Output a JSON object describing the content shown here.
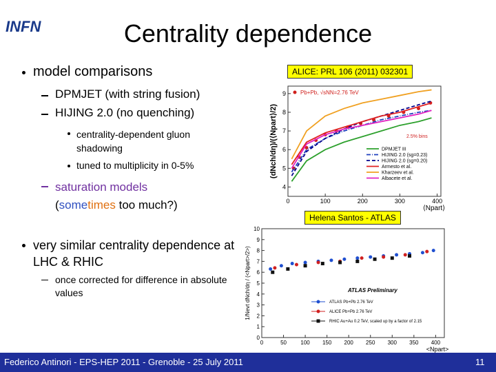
{
  "header": {
    "logo": "INFN",
    "title": "Centrality dependence"
  },
  "bullets": [
    {
      "text": "model comparisons"
    },
    {
      "text": "DPMJET (with string fusion)"
    },
    {
      "text": "HIJING 2.0 (no quenching)"
    },
    {
      "text": "centrality-dependent gluon shadowing"
    },
    {
      "text": "tuned to multiplicity in 0-5%"
    },
    {
      "parts": [
        "saturation models",
        "(",
        "some",
        "times",
        " too much?)"
      ]
    },
    {
      "text": "very similar centrality dependence at LHC & RHIC"
    },
    {
      "text": "once corrected for difference in absolute values"
    }
  ],
  "labels": {
    "alice_ref": "ALICE: PRL 106 (2011) 032301",
    "atlas_credit": "Helena Santos - ATLAS"
  },
  "figures": [
    {
      "type": "line",
      "ylabel": "(dNch/dη)/(⟨Npart⟩/2)",
      "xlabel": "⟨Npart⟩",
      "annotation": "2.5% bins",
      "xlim": [
        0,
        410
      ],
      "xticks": [
        0,
        100,
        200,
        300,
        400
      ],
      "ylim": [
        3.5,
        9.4
      ],
      "yticks": [
        4,
        5,
        6,
        7,
        8,
        9
      ],
      "series": [
        {
          "name": "Pb+Pb, √sNN=2.76 TeV",
          "color": "#d0201c",
          "style": "points",
          "x": [
            15,
            30,
            50,
            75,
            100,
            130,
            160,
            195,
            230,
            270,
            310,
            350,
            382
          ],
          "values": [
            5.0,
            5.6,
            6.1,
            6.5,
            6.8,
            7.0,
            7.2,
            7.4,
            7.6,
            7.8,
            8.0,
            8.2,
            8.5
          ]
        },
        {
          "name": "DPMJET III",
          "color": "#2ca02c",
          "style": "solid",
          "x": [
            10,
            50,
            100,
            150,
            200,
            250,
            300,
            350,
            385
          ],
          "values": [
            4.3,
            5.4,
            6.0,
            6.4,
            6.7,
            7.0,
            7.3,
            7.5,
            7.7
          ]
        },
        {
          "name": "HIJING 2.0 (sg=0.23)",
          "color": "#1f3fbf",
          "style": "dashdot",
          "x": [
            10,
            50,
            100,
            150,
            200,
            250,
            300,
            350,
            385
          ],
          "values": [
            4.8,
            6.0,
            6.6,
            7.0,
            7.3,
            7.6,
            7.8,
            8.0,
            8.1
          ]
        },
        {
          "name": "HIJING 2.0 (sg=0.20)",
          "color": "#00008b",
          "style": "dashed",
          "x": [
            10,
            50,
            100,
            150,
            200,
            250,
            300,
            350,
            385
          ],
          "values": [
            4.6,
            5.9,
            6.6,
            7.1,
            7.5,
            7.8,
            8.1,
            8.4,
            8.6
          ]
        },
        {
          "name": "Armesto et al.",
          "color": "#e02020",
          "style": "solid",
          "x": [
            10,
            50,
            100,
            150,
            200,
            250,
            300,
            350,
            385
          ],
          "values": [
            5.2,
            6.4,
            6.9,
            7.2,
            7.5,
            7.8,
            8.0,
            8.3,
            8.5
          ]
        },
        {
          "name": "Kharzeev et al.",
          "color": "#f0a020",
          "style": "solid",
          "x": [
            10,
            50,
            100,
            150,
            200,
            250,
            300,
            350,
            385
          ],
          "values": [
            5.5,
            7.0,
            7.8,
            8.2,
            8.5,
            8.7,
            8.9,
            9.1,
            9.2
          ]
        },
        {
          "name": "Albacete et al.",
          "color": "#e020c0",
          "style": "solid",
          "x": [
            10,
            50,
            100,
            150,
            200,
            250,
            300,
            350,
            385
          ],
          "values": [
            5.0,
            6.3,
            6.8,
            7.1,
            7.3,
            7.5,
            7.7,
            7.9,
            8.1
          ]
        }
      ]
    },
    {
      "type": "scatter",
      "ylabel": "1/Nevt dNch/dη / (<Npart>/2>)",
      "xlabel": "<Npart>",
      "annotation": "ATLAS Preliminary",
      "xlim": [
        0,
        420
      ],
      "xticks": [
        0,
        50,
        100,
        150,
        200,
        250,
        300,
        350,
        400
      ],
      "ylim": [
        0,
        10
      ],
      "yticks": [
        0,
        1,
        2,
        3,
        4,
        5,
        6,
        7,
        8,
        9,
        10
      ],
      "series": [
        {
          "name": "ATLAS Pb+Pb 2.76 TeV",
          "color": "#1f4fd0",
          "style": "points",
          "x": [
            20,
            45,
            70,
            100,
            130,
            160,
            190,
            220,
            250,
            280,
            310,
            340,
            370,
            395
          ],
          "values": [
            6.3,
            6.6,
            6.8,
            6.9,
            7.0,
            7.1,
            7.2,
            7.3,
            7.4,
            7.5,
            7.6,
            7.7,
            7.8,
            8.0
          ]
        },
        {
          "name": "ALICE Pb+Pb 2.76 TeV",
          "color": "#d02020",
          "style": "points",
          "x": [
            30,
            80,
            130,
            180,
            230,
            280,
            330,
            380
          ],
          "values": [
            6.4,
            6.7,
            6.9,
            7.0,
            7.3,
            7.4,
            7.6,
            7.9
          ]
        },
        {
          "name": "RHIC Au+Au 0.2 TeV, scaled up by a factor of 2.15",
          "color": "#111111",
          "style": "squares",
          "x": [
            25,
            60,
            100,
            140,
            180,
            220,
            260,
            300,
            340
          ],
          "values": [
            6.0,
            6.3,
            6.6,
            6.8,
            6.9,
            7.0,
            7.2,
            7.3,
            7.5
          ]
        }
      ]
    }
  ],
  "footer": {
    "text": "Federico Antinori - EPS-HEP 2011 - Grenoble - 25 July 2011",
    "page": "11"
  }
}
